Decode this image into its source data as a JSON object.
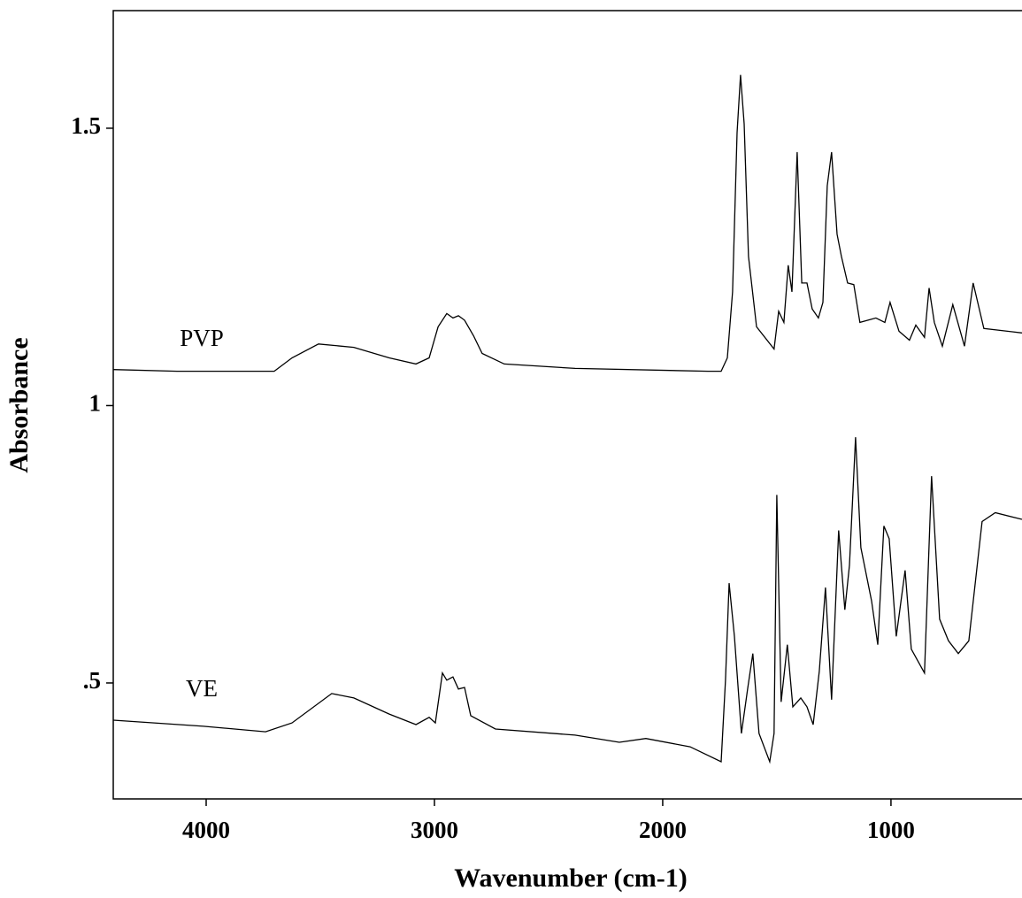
{
  "chart_data": {
    "type": "line",
    "xlabel": "Wavenumber (cm-1)",
    "ylabel": "Absorbance",
    "xlim": [
      4407,
      426
    ],
    "ylim": [
      0.291,
      1.712
    ],
    "xticks": [
      4000,
      3000,
      2000,
      1000
    ],
    "yticks": [
      {
        "value": 0.5,
        "label": ".5"
      },
      1,
      1.5
    ],
    "series": [
      {
        "name": "PVP",
        "color": "#000000",
        "x": [
          4407,
          4128,
          3702,
          3624,
          3508,
          3353,
          3198,
          3081,
          3023,
          2984,
          2946,
          2919,
          2895,
          2868,
          2829,
          2791,
          2694,
          2384,
          1802,
          1744,
          1717,
          1694,
          1674,
          1659,
          1643,
          1624,
          1589,
          1512,
          1492,
          1469,
          1450,
          1434,
          1411,
          1391,
          1368,
          1345,
          1318,
          1298,
          1279,
          1260,
          1236,
          1217,
          1190,
          1163,
          1136,
          1066,
          1027,
          1004,
          965,
          919,
          891,
          853,
          833,
          810,
          775,
          729,
          678,
          640,
          593,
          426
        ],
        "values": [
          1.065,
          1.062,
          1.062,
          1.086,
          1.111,
          1.105,
          1.086,
          1.075,
          1.086,
          1.142,
          1.166,
          1.158,
          1.162,
          1.154,
          1.126,
          1.094,
          1.075,
          1.067,
          1.062,
          1.062,
          1.086,
          1.205,
          1.492,
          1.596,
          1.508,
          1.269,
          1.142,
          1.102,
          1.17,
          1.15,
          1.253,
          1.205,
          1.457,
          1.221,
          1.221,
          1.174,
          1.158,
          1.186,
          1.396,
          1.457,
          1.309,
          1.269,
          1.221,
          1.218,
          1.15,
          1.158,
          1.15,
          1.186,
          1.134,
          1.118,
          1.145,
          1.123,
          1.212,
          1.15,
          1.107,
          1.182,
          1.107,
          1.221,
          1.139,
          1.131
        ]
      },
      {
        "name": "VE",
        "color": "#000000",
        "x": [
          4407,
          4012,
          3740,
          3624,
          3450,
          3353,
          3198,
          3081,
          3023,
          2996,
          2965,
          2946,
          2919,
          2895,
          2868,
          2841,
          2733,
          2384,
          2190,
          2074,
          1880,
          1744,
          1725,
          1709,
          1686,
          1655,
          1628,
          1605,
          1578,
          1531,
          1512,
          1500,
          1481,
          1454,
          1430,
          1395,
          1368,
          1341,
          1314,
          1287,
          1260,
          1229,
          1202,
          1182,
          1155,
          1132,
          1085,
          1058,
          1031,
          1008,
          977,
          938,
          911,
          853,
          822,
          787,
          748,
          705,
          659,
          601,
          543,
          426
        ],
        "values": [
          0.433,
          0.422,
          0.412,
          0.428,
          0.481,
          0.473,
          0.444,
          0.425,
          0.438,
          0.428,
          0.518,
          0.505,
          0.511,
          0.489,
          0.492,
          0.441,
          0.417,
          0.406,
          0.393,
          0.4,
          0.385,
          0.358,
          0.505,
          0.68,
          0.584,
          0.409,
          0.489,
          0.553,
          0.409,
          0.358,
          0.409,
          0.839,
          0.466,
          0.569,
          0.457,
          0.473,
          0.457,
          0.425,
          0.521,
          0.672,
          0.47,
          0.775,
          0.632,
          0.712,
          0.943,
          0.744,
          0.648,
          0.569,
          0.783,
          0.76,
          0.584,
          0.703,
          0.561,
          0.518,
          0.873,
          0.615,
          0.576,
          0.553,
          0.576,
          0.791,
          0.807,
          0.795
        ]
      }
    ]
  }
}
